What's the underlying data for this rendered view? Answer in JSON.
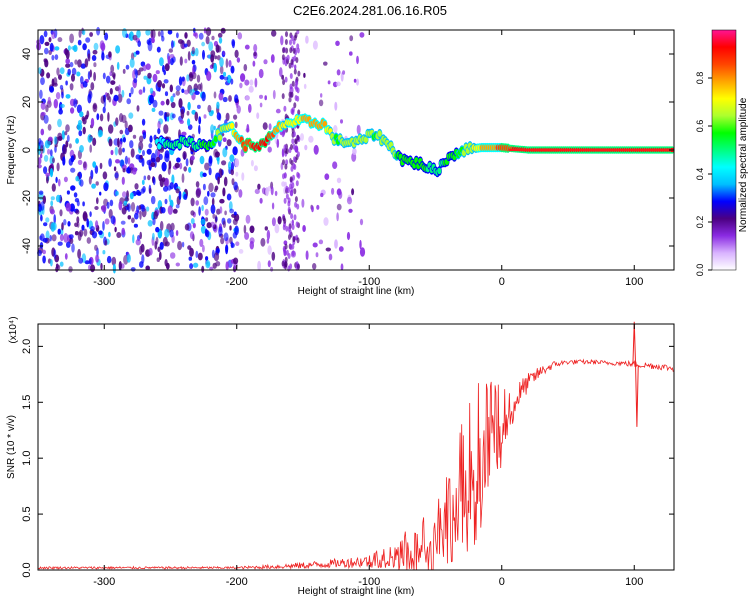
{
  "figure_title": "C2E6.2024.281.06.16.R05",
  "chart_data": [
    {
      "type": "heatmap",
      "xlabel": "Height of straight line (km)",
      "ylabel": "Frequency (Hz)",
      "xlim": [
        -350,
        130
      ],
      "ylim": [
        -50,
        50
      ],
      "xticks": [
        -300,
        -200,
        -100,
        0,
        100
      ],
      "yticks": [
        -40,
        -20,
        0,
        20,
        40
      ],
      "colorbar": {
        "label": "Normalized spectral amplitude",
        "range": [
          0,
          1
        ],
        "ticks": [
          "0.0",
          "0.2",
          "0.4",
          "0.6",
          "0.8"
        ],
        "colors": [
          "#ffffff",
          "#d9b3ff",
          "#8a2be2",
          "#4b0082",
          "#0000ff",
          "#00bfff",
          "#00ffff",
          "#00ff7f",
          "#00ff00",
          "#adff2f",
          "#ffff00",
          "#ffa500",
          "#ff4500",
          "#ff0000",
          "#ff1493"
        ]
      },
      "noise_region_x": [
        -350,
        -145
      ],
      "signal_track": [
        {
          "x": -260,
          "y": 3,
          "a": 0.45
        },
        {
          "x": -240,
          "y": 3,
          "a": 0.5
        },
        {
          "x": -222,
          "y": 2,
          "a": 0.55
        },
        {
          "x": -205,
          "y": 10.5,
          "a": 0.7
        },
        {
          "x": -195,
          "y": 2,
          "a": 0.85
        },
        {
          "x": -180,
          "y": 2,
          "a": 0.95
        },
        {
          "x": -165,
          "y": 11,
          "a": 0.7
        },
        {
          "x": -150,
          "y": 12,
          "a": 0.75
        },
        {
          "x": -135,
          "y": 11,
          "a": 0.8
        },
        {
          "x": -125,
          "y": 4,
          "a": 0.6
        },
        {
          "x": -110,
          "y": 3,
          "a": 0.65
        },
        {
          "x": -95,
          "y": 7,
          "a": 0.6
        },
        {
          "x": -85,
          "y": 2,
          "a": 0.65
        },
        {
          "x": -75,
          "y": -4,
          "a": 0.55
        },
        {
          "x": -60,
          "y": -6,
          "a": 0.55
        },
        {
          "x": -50,
          "y": -9,
          "a": 0.5
        },
        {
          "x": -40,
          "y": -3,
          "a": 0.55
        },
        {
          "x": -30,
          "y": 0,
          "a": 0.6
        },
        {
          "x": -15,
          "y": 1,
          "a": 0.75
        },
        {
          "x": 0,
          "y": 1,
          "a": 0.85
        },
        {
          "x": 20,
          "y": 0,
          "a": 0.95
        },
        {
          "x": 60,
          "y": 0,
          "a": 0.95
        },
        {
          "x": 100,
          "y": 0,
          "a": 0.95
        },
        {
          "x": 130,
          "y": 0,
          "a": 0.95
        }
      ]
    },
    {
      "type": "line",
      "xlabel": "Height of straight line (km)",
      "ylabel": "SNR (10 * v/v)",
      "y_multiplier": "(x10⁴)",
      "xlim": [
        -350,
        130
      ],
      "ylim": [
        0,
        2.2
      ],
      "xticks": [
        -300,
        -200,
        -100,
        0,
        100
      ],
      "yticks": [
        0.0,
        0.5,
        1.0,
        1.5,
        2.0
      ],
      "series": [
        {
          "color": "#ee2222",
          "x": [
            -350,
            -300,
            -250,
            -200,
            -170,
            -150,
            -125,
            -100,
            -85,
            -70,
            -55,
            -40,
            -30,
            -20,
            -10,
            0,
            10,
            20,
            30,
            40,
            50,
            60,
            70,
            80,
            90,
            100,
            110,
            120,
            130
          ],
          "y": [
            0.02,
            0.02,
            0.02,
            0.02,
            0.03,
            0.04,
            0.06,
            0.08,
            0.14,
            0.18,
            0.25,
            0.5,
            0.75,
            1.05,
            1.2,
            1.3,
            1.52,
            1.68,
            1.78,
            1.84,
            1.86,
            1.86,
            1.86,
            1.85,
            1.85,
            1.84,
            1.83,
            1.82,
            1.8
          ],
          "noise_amplitude": [
            0.01,
            0.01,
            0.01,
            0.01,
            0.02,
            0.03,
            0.04,
            0.06,
            0.12,
            0.2,
            0.28,
            0.45,
            0.6,
            0.7,
            0.5,
            0.35,
            0.15,
            0.08,
            0.05,
            0.03,
            0.02,
            0.02,
            0.02,
            0.02,
            0.02,
            0.03,
            0.03,
            0.03,
            0.03
          ]
        }
      ],
      "outliers": [
        {
          "x": 100,
          "y": 2.22
        },
        {
          "x": 102,
          "y": 1.28
        }
      ]
    }
  ]
}
